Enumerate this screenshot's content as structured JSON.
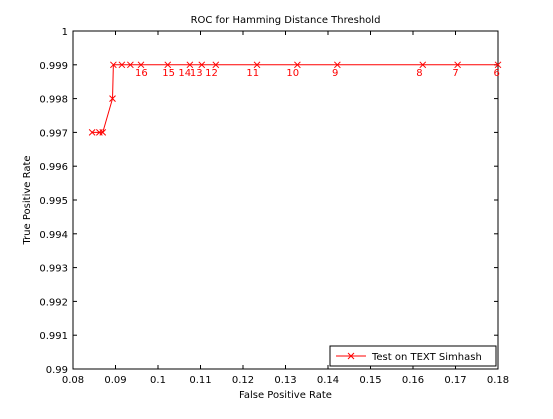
{
  "chart_data": {
    "type": "line",
    "title": "ROC for Hamming Distance Threshold",
    "xlabel": "False Positive Rate",
    "ylabel": "True Positive Rate",
    "xlim": [
      0.08,
      0.18
    ],
    "ylim": [
      0.99,
      1.0
    ],
    "xticks": [
      "0.08",
      "0.09",
      "0.1",
      "0.11",
      "0.12",
      "0.13",
      "0.14",
      "0.15",
      "0.16",
      "0.17",
      "0.18"
    ],
    "yticks": [
      "0.99",
      "0.991",
      "0.992",
      "0.993",
      "0.994",
      "0.995",
      "0.996",
      "0.997",
      "0.998",
      "0.999",
      "1"
    ],
    "grid": false,
    "legend_position": "bottom-right",
    "series": [
      {
        "name": "Test on TEXT Simhash",
        "color": "#ff0000",
        "marker": "x",
        "x": [
          0.0845,
          0.0862,
          0.087,
          0.0893,
          0.0895,
          0.0915,
          0.0935,
          0.096,
          0.1023,
          0.1075,
          0.1103,
          0.1136,
          0.1233,
          0.1328,
          0.1422,
          0.1623,
          0.1705,
          0.18
        ],
        "y": [
          0.997,
          0.997,
          0.997,
          0.998,
          0.999,
          0.999,
          0.999,
          0.999,
          0.999,
          0.999,
          0.999,
          0.999,
          0.999,
          0.999,
          0.999,
          0.999,
          0.999,
          0.999
        ]
      }
    ],
    "annotations": [
      {
        "text": "16",
        "x": 0.0961,
        "y": 0.99878
      },
      {
        "text": "15",
        "x": 0.1025,
        "y": 0.99878
      },
      {
        "text": "14",
        "x": 0.1063,
        "y": 0.99878
      },
      {
        "text": "13",
        "x": 0.109,
        "y": 0.99878
      },
      {
        "text": "12",
        "x": 0.1126,
        "y": 0.99878
      },
      {
        "text": "11",
        "x": 0.1223,
        "y": 0.99878
      },
      {
        "text": "10",
        "x": 0.1317,
        "y": 0.99878
      },
      {
        "text": "9",
        "x": 0.1417,
        "y": 0.99878
      },
      {
        "text": "8",
        "x": 0.1615,
        "y": 0.99878
      },
      {
        "text": "7",
        "x": 0.17,
        "y": 0.99878
      },
      {
        "text": "6",
        "x": 0.1797,
        "y": 0.99878
      }
    ]
  }
}
